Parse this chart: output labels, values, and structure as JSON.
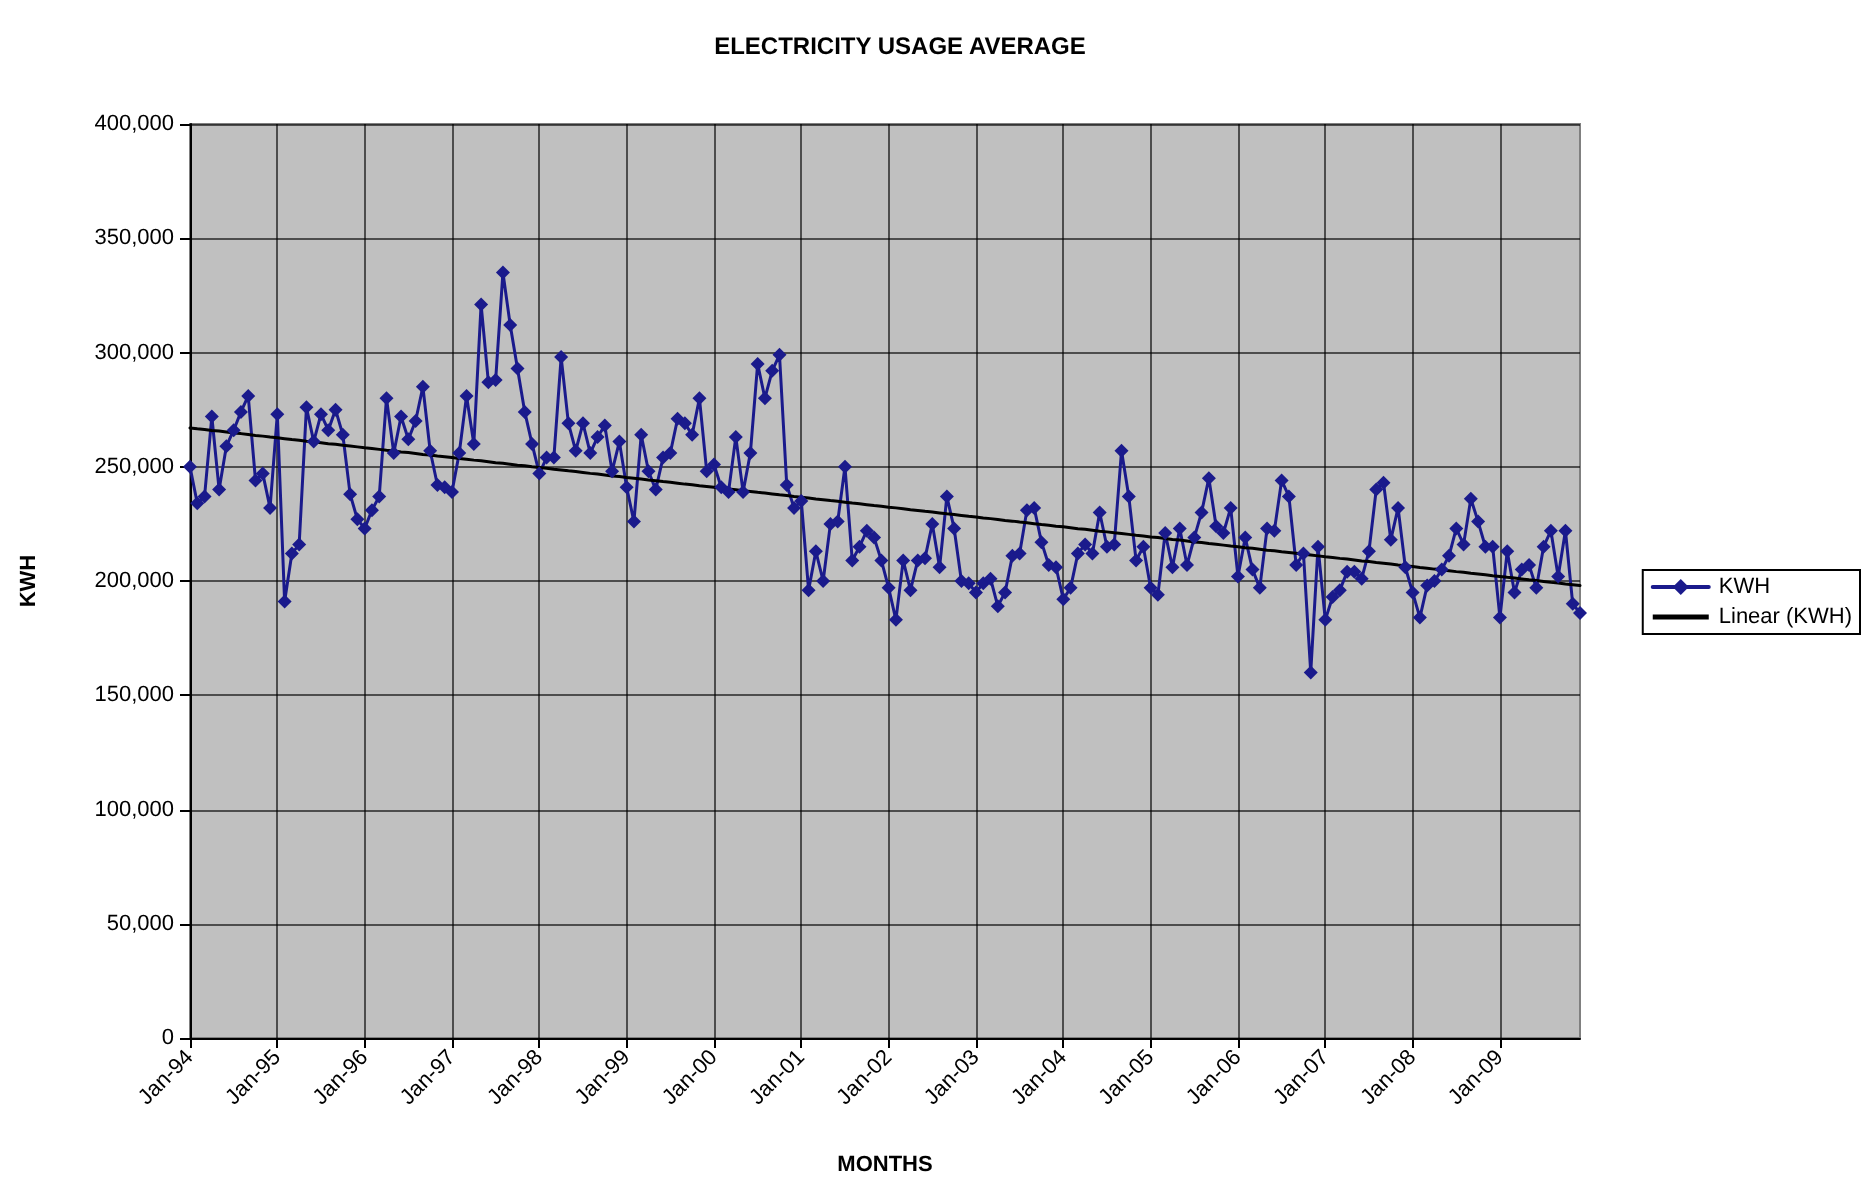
{
  "chart_data": {
    "type": "line",
    "title": "ELECTRICITY USAGE AVERAGE",
    "xlabel": "MONTHS",
    "ylabel": "KWH",
    "categories": [
      "Jan-94",
      null,
      null,
      null,
      null,
      null,
      null,
      null,
      null,
      null,
      null,
      null,
      "Jan-95",
      null,
      null,
      null,
      null,
      null,
      null,
      null,
      null,
      null,
      null,
      null,
      "Jan-96",
      null,
      null,
      null,
      null,
      null,
      null,
      null,
      null,
      null,
      null,
      null,
      "Jan-97",
      null,
      null,
      null,
      null,
      null,
      null,
      null,
      null,
      null,
      null,
      null,
      "Jan-98",
      null,
      null,
      null,
      null,
      null,
      null,
      null,
      null,
      null,
      null,
      null,
      "Jan-99",
      null,
      null,
      null,
      null,
      null,
      null,
      null,
      null,
      null,
      null,
      null,
      "Jan-00",
      null,
      null,
      null,
      null,
      null,
      null,
      null,
      null,
      null,
      null,
      null,
      "Jan-01",
      null,
      null,
      null,
      null,
      null,
      null,
      null,
      null,
      null,
      null,
      null,
      "Jan-02",
      null,
      null,
      null,
      null,
      null,
      null,
      null,
      null,
      null,
      null,
      null,
      "Jan-03",
      null,
      null,
      null,
      null,
      null,
      null,
      null,
      null,
      null,
      null,
      null,
      "Jan-04",
      null,
      null,
      null,
      null,
      null,
      null,
      null,
      null,
      null,
      null,
      null,
      "Jan-05",
      null,
      null,
      null,
      null,
      null,
      null,
      null,
      null,
      null,
      null,
      null,
      "Jan-06",
      null,
      null,
      null,
      null,
      null,
      null,
      null,
      null,
      null,
      null,
      null,
      "Jan-07",
      null,
      null,
      null,
      null,
      null,
      null,
      null,
      null,
      null,
      null,
      null,
      "Jan-08",
      null,
      null,
      null,
      null,
      null,
      null,
      null,
      null,
      null,
      null,
      null,
      "Jan-09",
      null,
      null,
      null,
      null,
      null,
      null,
      null,
      null,
      null,
      null,
      null
    ],
    "series": [
      {
        "name": "KWH",
        "color": "#1a1a8c",
        "marker": "diamond",
        "values": [
          250000,
          234000,
          237000,
          272000,
          240000,
          259000,
          266000,
          274000,
          281000,
          244000,
          247000,
          232000,
          273000,
          191000,
          212000,
          216000,
          276000,
          261000,
          273000,
          266000,
          275000,
          264000,
          238000,
          227000,
          223000,
          231000,
          237000,
          280000,
          256000,
          272000,
          262000,
          270000,
          285000,
          257000,
          242000,
          241000,
          239000,
          256000,
          281000,
          260000,
          321000,
          287000,
          288000,
          335000,
          312000,
          293000,
          274000,
          260000,
          247000,
          254000,
          254000,
          298000,
          269000,
          257000,
          269000,
          256000,
          263000,
          268000,
          248000,
          261000,
          241000,
          226000,
          264000,
          248000,
          240000,
          254000,
          256000,
          271000,
          269000,
          264000,
          280000,
          248000,
          251000,
          241000,
          239000,
          263000,
          239000,
          256000,
          295000,
          280000,
          292000,
          299000,
          242000,
          232000,
          235000,
          196000,
          213000,
          200000,
          225000,
          226000,
          250000,
          209000,
          215000,
          222000,
          219000,
          209000,
          197000,
          183000,
          209000,
          196000,
          209000,
          210000,
          225000,
          206000,
          237000,
          223000,
          200000,
          199000,
          195000,
          199000,
          201000,
          189000,
          195000,
          211000,
          212000,
          231000,
          232000,
          217000,
          207000,
          206000,
          192000,
          197000,
          212000,
          216000,
          212000,
          230000,
          215000,
          216000,
          257000,
          237000,
          209000,
          215000,
          197000,
          194000,
          221000,
          206000,
          223000,
          207000,
          219000,
          230000,
          245000,
          224000,
          221000,
          232000,
          202000,
          219000,
          205000,
          197000,
          223000,
          222000,
          244000,
          237000,
          207000,
          212000,
          160000,
          215000,
          183000,
          193000,
          196000,
          204000,
          204000,
          201000,
          213000,
          240000,
          243000,
          218000,
          232000,
          206000,
          195000,
          184000,
          198000,
          200000,
          205000,
          211000,
          223000,
          216000,
          236000,
          226000,
          215000,
          215000,
          184000,
          213000,
          195000,
          205000,
          207000,
          197000,
          215000,
          222000,
          202000,
          222000,
          190000,
          186000
        ]
      },
      {
        "name": "Linear (KWH)",
        "color": "#000000",
        "marker": "none",
        "values": [
          267000,
          266600,
          266300,
          265900,
          265600,
          265200,
          264800,
          264500,
          264100,
          263700,
          263400,
          263000,
          262700,
          262300,
          261900,
          261600,
          261200,
          260900,
          260500,
          260100,
          259800,
          259400,
          259100,
          258700,
          258300,
          258000,
          257600,
          257200,
          256900,
          256500,
          256200,
          255800,
          255400,
          255100,
          254700,
          254400,
          254000,
          253600,
          253300,
          252900,
          252600,
          252200,
          251800,
          251500,
          251100,
          250700,
          250400,
          250000,
          249700,
          249300,
          248900,
          248600,
          248200,
          247900,
          247500,
          247100,
          246800,
          246400,
          246000,
          245700,
          245300,
          245000,
          244600,
          244200,
          243900,
          243500,
          243200,
          242800,
          242400,
          242100,
          241700,
          241400,
          241000,
          240600,
          240300,
          239900,
          239500,
          239200,
          238800,
          238500,
          238100,
          237700,
          237400,
          237000,
          236700,
          236300,
          235900,
          235600,
          235200,
          234900,
          234500,
          234100,
          233800,
          233400,
          233000,
          232700,
          232300,
          232000,
          231600,
          231200,
          230900,
          230500,
          230200,
          229800,
          229400,
          229100,
          228700,
          228300,
          228000,
          227600,
          227300,
          226900,
          226500,
          226200,
          225800,
          225500,
          225100,
          224700,
          224400,
          224000,
          223700,
          223300,
          222900,
          222600,
          222200,
          221800,
          221500,
          221100,
          220800,
          220400,
          220000,
          219700,
          219300,
          219000,
          218600,
          218200,
          217900,
          217500,
          217100,
          216800,
          216400,
          216100,
          215700,
          215300,
          215000,
          214600,
          214300,
          213900,
          213500,
          213200,
          212800,
          212500,
          212100,
          211700,
          211400,
          211000,
          210600,
          210300,
          209900,
          209600,
          209200,
          208800,
          208500,
          208100,
          207800,
          207400,
          207000,
          206700,
          206300,
          205900,
          205600,
          205200,
          204900,
          204500,
          204100,
          203800,
          203400,
          203100,
          202700,
          202300,
          202000,
          201600,
          201300,
          200900,
          200500,
          200200,
          199800,
          199400,
          199100,
          198700,
          198400,
          198000
        ]
      }
    ],
    "ylim": [
      0,
      400000
    ],
    "yticks": [
      0,
      {
        "value": 50000,
        "label": "50,000"
      },
      {
        "value": 100000,
        "label": "100,000"
      },
      {
        "value": 150000,
        "label": "150,000"
      },
      {
        "value": 200000,
        "label": "200,000"
      },
      {
        "value": 250000,
        "label": "250,000"
      },
      {
        "value": 300000,
        "label": "300,000"
      },
      {
        "value": 350000,
        "label": "350,000"
      },
      {
        "value": 400000,
        "label": "400,000"
      }
    ],
    "grid": true,
    "legend": "right"
  }
}
